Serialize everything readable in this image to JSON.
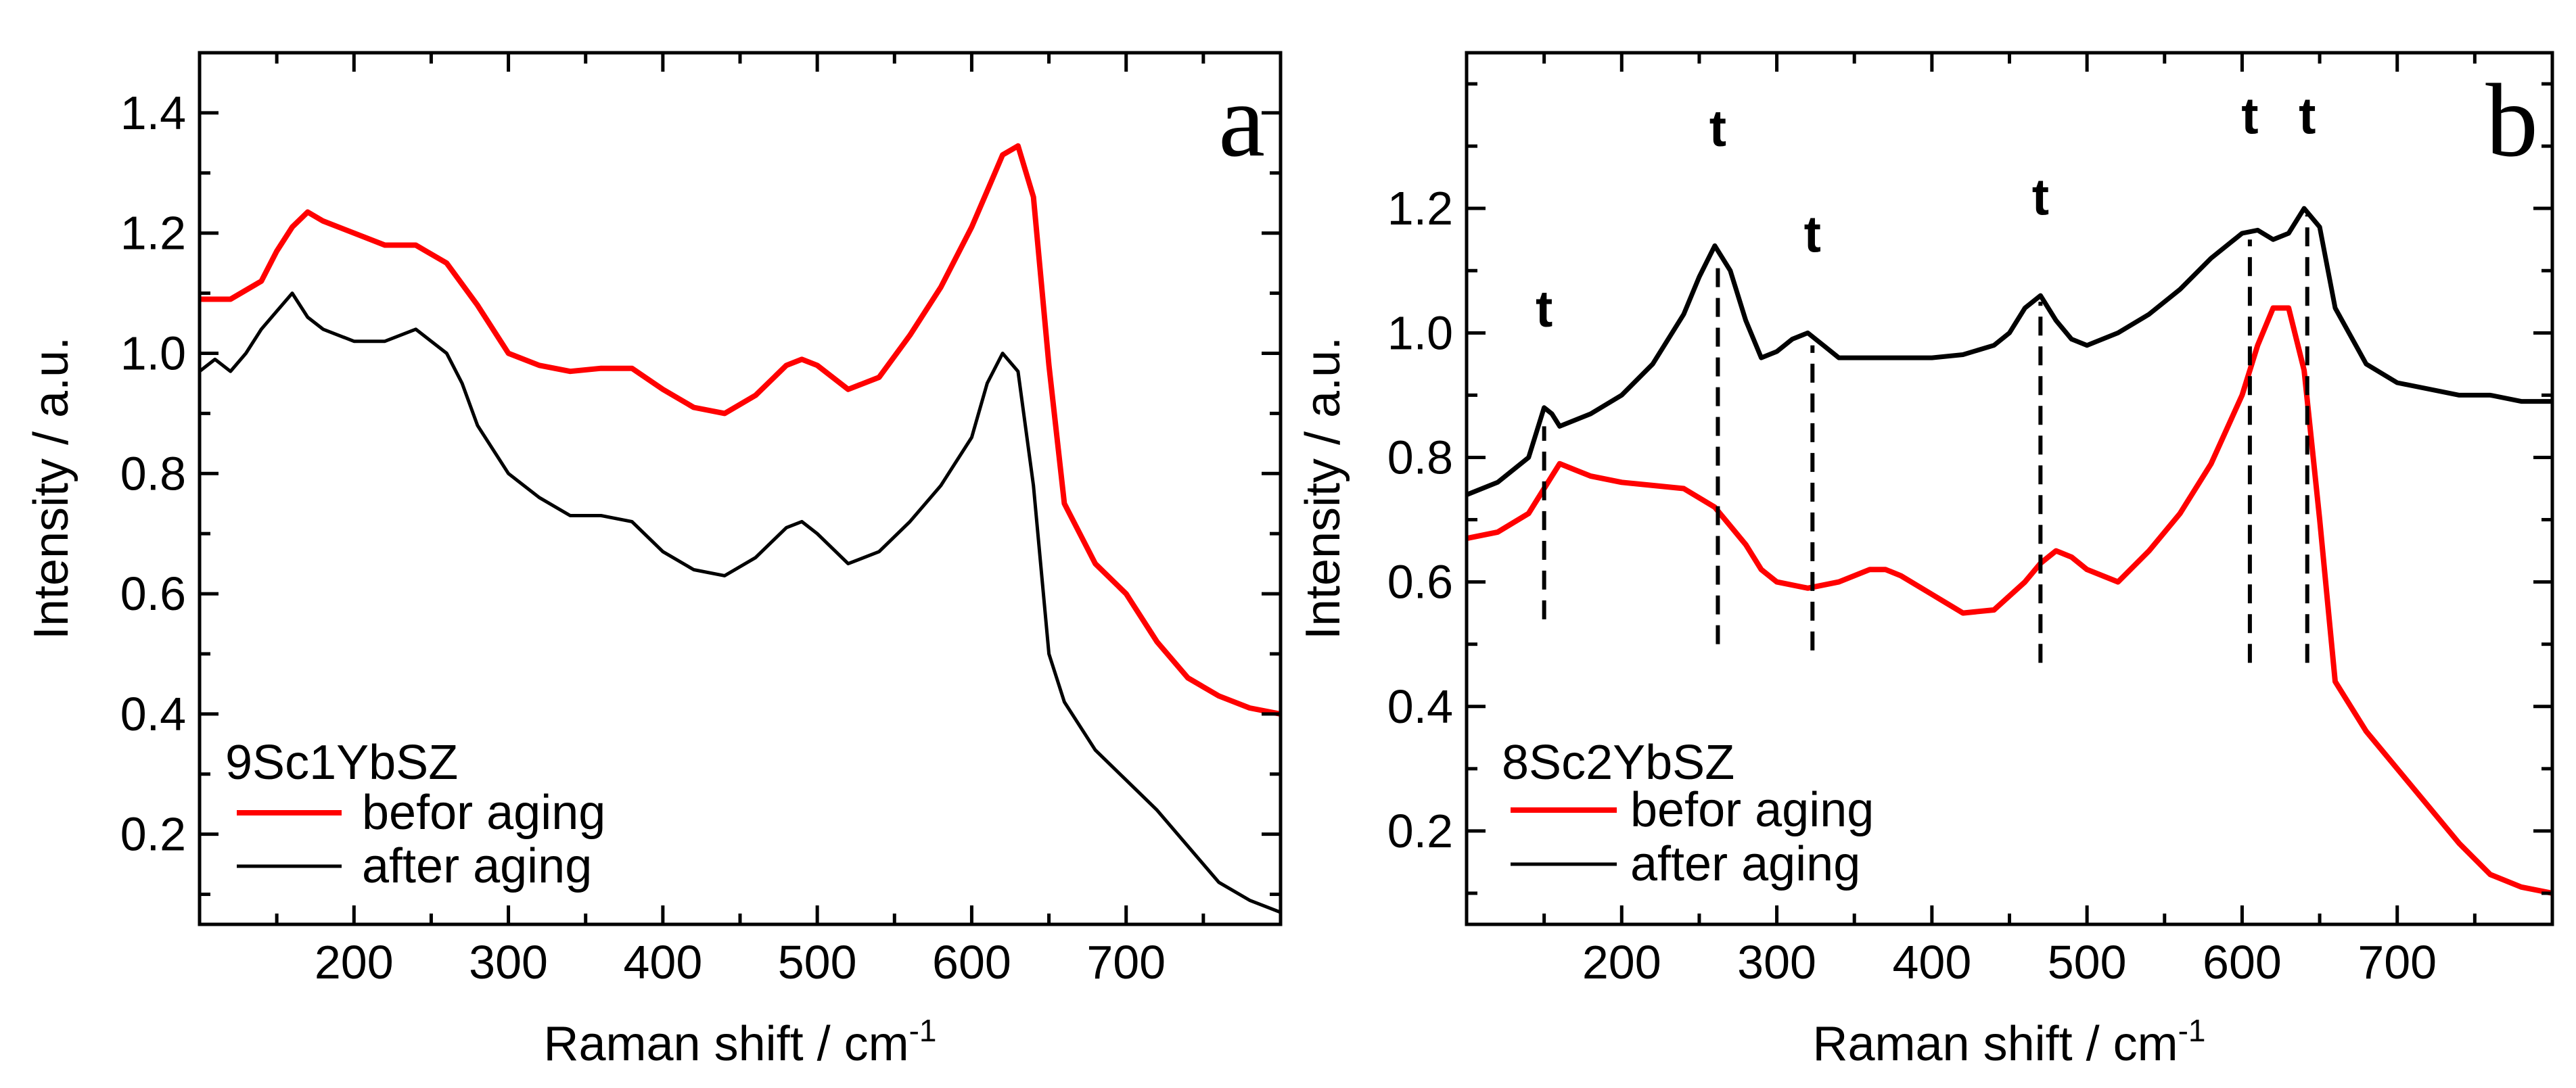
{
  "chart_data": [
    {
      "type": "line",
      "panel_label": "a",
      "sample": "9Sc1YbSZ",
      "xlabel": "Raman shift / cm",
      "xlabel_superscript": "-1",
      "ylabel": "Intensity / a.u.",
      "xlim": [
        100,
        800
      ],
      "ylim": [
        0.05,
        1.5
      ],
      "x_ticks": [
        200,
        300,
        400,
        500,
        600,
        700
      ],
      "x_tick_labels": [
        "200",
        "300",
        "400",
        "500",
        "600",
        "700"
      ],
      "y_ticks": [
        0.2,
        0.4,
        0.6,
        0.8,
        1.0,
        1.2,
        1.4
      ],
      "y_tick_labels": [
        "0.2",
        "0.4",
        "0.6",
        "0.8",
        "1.0",
        "1.2",
        "1.4"
      ],
      "legend_position": "bottom-left",
      "series": [
        {
          "name": "befor aging",
          "color": "#ff0000",
          "x": [
            100,
            120,
            140,
            150,
            160,
            170,
            180,
            200,
            220,
            240,
            260,
            280,
            300,
            320,
            340,
            360,
            380,
            400,
            420,
            440,
            460,
            480,
            490,
            500,
            520,
            540,
            560,
            580,
            600,
            610,
            620,
            630,
            640,
            650,
            660,
            680,
            700,
            720,
            740,
            760,
            780,
            800
          ],
          "values": [
            1.09,
            1.09,
            1.12,
            1.17,
            1.21,
            1.235,
            1.22,
            1.2,
            1.18,
            1.18,
            1.15,
            1.08,
            1.0,
            0.98,
            0.97,
            0.975,
            0.975,
            0.94,
            0.91,
            0.9,
            0.93,
            0.98,
            0.99,
            0.98,
            0.94,
            0.96,
            1.03,
            1.11,
            1.21,
            1.27,
            1.33,
            1.345,
            1.26,
            0.98,
            0.75,
            0.65,
            0.6,
            0.52,
            0.46,
            0.43,
            0.41,
            0.4
          ]
        },
        {
          "name": "after aging",
          "color": "#000000",
          "x": [
            100,
            110,
            120,
            130,
            140,
            150,
            160,
            170,
            180,
            200,
            220,
            240,
            260,
            270,
            280,
            300,
            320,
            340,
            360,
            380,
            400,
            420,
            440,
            460,
            480,
            490,
            500,
            520,
            540,
            560,
            580,
            600,
            610,
            620,
            630,
            640,
            650,
            660,
            680,
            700,
            720,
            740,
            760,
            780,
            800
          ],
          "values": [
            0.97,
            0.99,
            0.97,
            1.0,
            1.04,
            1.07,
            1.1,
            1.06,
            1.04,
            1.02,
            1.02,
            1.04,
            1.0,
            0.95,
            0.88,
            0.8,
            0.76,
            0.73,
            0.73,
            0.72,
            0.67,
            0.64,
            0.63,
            0.66,
            0.71,
            0.72,
            0.7,
            0.65,
            0.67,
            0.72,
            0.78,
            0.86,
            0.95,
            1.0,
            0.97,
            0.78,
            0.5,
            0.42,
            0.34,
            0.29,
            0.24,
            0.18,
            0.12,
            0.09,
            0.07
          ]
        }
      ]
    },
    {
      "type": "line",
      "panel_label": "b",
      "sample": "8Sc2YbSZ",
      "xlabel": "Raman shift / cm",
      "xlabel_superscript": "-1",
      "ylabel": "Intensity / a.u.",
      "xlim": [
        100,
        800
      ],
      "ylim": [
        0.05,
        1.45
      ],
      "x_ticks": [
        200,
        300,
        400,
        500,
        600,
        700
      ],
      "x_tick_labels": [
        "200",
        "300",
        "400",
        "500",
        "600",
        "700"
      ],
      "y_ticks": [
        0.2,
        0.4,
        0.6,
        0.8,
        1.0,
        1.2
      ],
      "y_tick_labels": [
        "0.2",
        "0.4",
        "0.6",
        "0.8",
        "1.0",
        "1.2"
      ],
      "legend_position": "bottom-left",
      "series": [
        {
          "name": "befor aging",
          "color": "#ff0000",
          "x": [
            100,
            120,
            140,
            150,
            160,
            170,
            180,
            200,
            220,
            240,
            260,
            270,
            280,
            290,
            300,
            320,
            340,
            360,
            370,
            380,
            400,
            420,
            440,
            460,
            470,
            480,
            490,
            500,
            520,
            540,
            560,
            580,
            600,
            610,
            620,
            630,
            640,
            650,
            660,
            680,
            700,
            720,
            740,
            760,
            780,
            800
          ],
          "values": [
            0.67,
            0.68,
            0.71,
            0.75,
            0.79,
            0.78,
            0.77,
            0.76,
            0.755,
            0.75,
            0.72,
            0.69,
            0.66,
            0.62,
            0.6,
            0.59,
            0.6,
            0.62,
            0.62,
            0.61,
            0.58,
            0.55,
            0.555,
            0.6,
            0.63,
            0.65,
            0.64,
            0.62,
            0.6,
            0.65,
            0.71,
            0.79,
            0.9,
            0.98,
            1.04,
            1.04,
            0.94,
            0.7,
            0.44,
            0.36,
            0.3,
            0.24,
            0.18,
            0.13,
            0.11,
            0.1
          ]
        },
        {
          "name": "after aging",
          "color": "#000000",
          "x": [
            100,
            120,
            140,
            150,
            155,
            160,
            180,
            200,
            220,
            240,
            250,
            260,
            270,
            280,
            290,
            300,
            310,
            320,
            330,
            340,
            360,
            380,
            400,
            420,
            440,
            450,
            460,
            470,
            480,
            490,
            500,
            520,
            540,
            560,
            580,
            600,
            610,
            620,
            630,
            640,
            650,
            660,
            680,
            700,
            720,
            740,
            760,
            780,
            800
          ],
          "values": [
            0.74,
            0.76,
            0.8,
            0.88,
            0.87,
            0.85,
            0.87,
            0.9,
            0.95,
            1.03,
            1.09,
            1.14,
            1.1,
            1.02,
            0.96,
            0.97,
            0.99,
            1.0,
            0.98,
            0.96,
            0.96,
            0.96,
            0.96,
            0.965,
            0.98,
            1.0,
            1.04,
            1.06,
            1.02,
            0.99,
            0.98,
            1.0,
            1.03,
            1.07,
            1.12,
            1.16,
            1.165,
            1.15,
            1.16,
            1.2,
            1.17,
            1.04,
            0.95,
            0.92,
            0.91,
            0.9,
            0.9,
            0.89,
            0.89
          ]
        }
      ],
      "annotations": [
        {
          "label": "t",
          "x": 150,
          "y_bottom": 0.54,
          "y_top": 0.85,
          "label_y": 1.01
        },
        {
          "label": "t",
          "x": 262,
          "y_bottom": 0.5,
          "y_top": 1.12,
          "label_y": 1.3
        },
        {
          "label": "t",
          "x": 323,
          "y_bottom": 0.49,
          "y_top": 0.98,
          "label_y": 1.13
        },
        {
          "label": "t",
          "x": 470,
          "y_bottom": 0.47,
          "y_top": 1.05,
          "label_y": 1.19
        },
        {
          "label": "t",
          "x": 605,
          "y_bottom": 0.47,
          "y_top": 1.15,
          "label_y": 1.32
        },
        {
          "label": "t",
          "x": 642,
          "y_bottom": 0.47,
          "y_top": 1.19,
          "label_y": 1.32
        }
      ]
    }
  ]
}
